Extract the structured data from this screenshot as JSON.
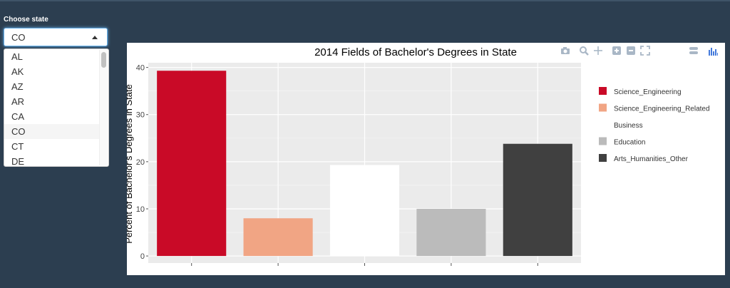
{
  "sidebar": {
    "label": "Choose state",
    "selected": "CO",
    "options": [
      "AL",
      "AK",
      "AZ",
      "AR",
      "CA",
      "CO",
      "CT",
      "DE"
    ]
  },
  "modebar": {
    "icons": [
      "camera-icon",
      "zoom-icon",
      "pan-icon",
      "zoom-in-icon",
      "zoom-out-icon",
      "autoscale-icon",
      "reset-axes-icon",
      "spike-lines-icon",
      "hover-compare-icon",
      "plotly-logo-icon"
    ],
    "color": "#a9b7c6",
    "logo_color": "#447adb"
  },
  "chart_data": {
    "type": "bar",
    "title": "2014 Fields of Bachelor's Degrees in State",
    "xlabel": "",
    "ylabel": "Percent of Bachelor's Degrees in State",
    "ylim": [
      -1.5,
      41
    ],
    "yticks": [
      0,
      10,
      20,
      30,
      40
    ],
    "grid": true,
    "legend_position": "right",
    "series": [
      {
        "name": "Science_Engineering",
        "value": 39.3,
        "color": "#c90a27"
      },
      {
        "name": "Science_Engineering_Related",
        "value": 8.0,
        "color": "#f1a584"
      },
      {
        "name": "Business",
        "value": 19.3,
        "color": "#ffffff"
      },
      {
        "name": "Education",
        "value": 10.0,
        "color": "#bbbbbb"
      },
      {
        "name": "Arts_Humanities_Other",
        "value": 23.8,
        "color": "#404040"
      }
    ]
  }
}
